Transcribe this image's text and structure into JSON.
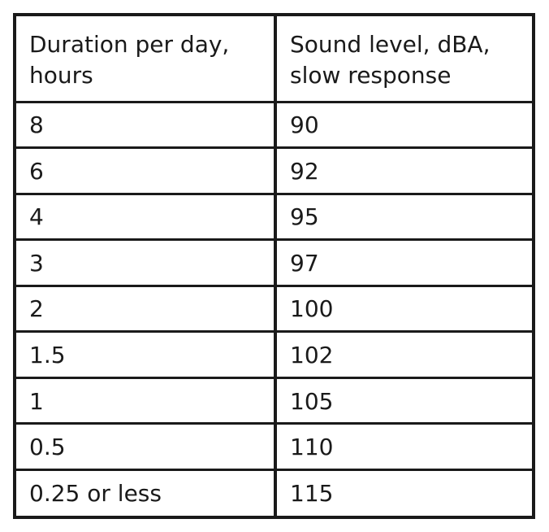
{
  "table": {
    "headers": [
      "Duration per day, hours",
      "Sound level, dBA, slow response"
    ],
    "rows": [
      [
        "8",
        "90"
      ],
      [
        "6",
        "92"
      ],
      [
        "4",
        "95"
      ],
      [
        "3",
        "97"
      ],
      [
        "2",
        "100"
      ],
      [
        "1.5",
        "102"
      ],
      [
        "1",
        "105"
      ],
      [
        "0.5",
        "110"
      ],
      [
        "0.25 or less",
        "115"
      ]
    ]
  }
}
